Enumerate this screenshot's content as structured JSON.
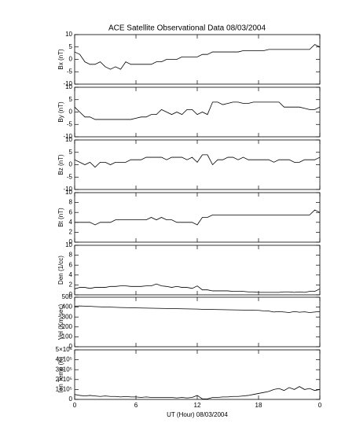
{
  "chart_data": [
    {
      "type": "line",
      "title": "ACE Satellite Observational Data   08/03/2004",
      "ylabel": "Bx (nT)",
      "x": [
        0,
        0.5,
        1,
        1.5,
        2,
        2.5,
        3,
        3.5,
        4,
        4.5,
        5,
        5.5,
        6,
        6.5,
        7,
        7.5,
        8,
        8.5,
        9,
        9.5,
        10,
        10.5,
        11,
        11.5,
        12,
        12.5,
        13,
        13.5,
        14,
        14.5,
        15,
        15.5,
        16,
        16.5,
        17,
        17.5,
        18,
        18.5,
        19,
        19.5,
        20,
        20.5,
        21,
        21.5,
        22,
        22.5,
        23,
        23.5,
        24
      ],
      "values": [
        3,
        2,
        -1,
        -2,
        -2,
        -1,
        -3,
        -4,
        -3,
        -4,
        -1,
        -2,
        -2,
        -2,
        -2,
        -2,
        -1,
        -1,
        0,
        0,
        0,
        1,
        1,
        1,
        1,
        2,
        2,
        3,
        3,
        3,
        3,
        3,
        3,
        3.5,
        3.5,
        3.5,
        3.5,
        3.5,
        4,
        4,
        4,
        4,
        4,
        4,
        4,
        4,
        4,
        6,
        5
      ],
      "xlim": [
        0,
        24
      ],
      "xticks": [
        0,
        6,
        12,
        18,
        {
          "value": 24,
          "label": "0"
        }
      ],
      "ylim": [
        -10,
        10
      ],
      "yticks": [
        -10,
        -5,
        0,
        5,
        10
      ]
    },
    {
      "type": "line",
      "ylabel": "By (nT)",
      "x": [
        0,
        0.5,
        1,
        1.5,
        2,
        2.5,
        3,
        3.5,
        4,
        4.5,
        5,
        5.5,
        6,
        6.5,
        7,
        7.5,
        8,
        8.5,
        9,
        9.5,
        10,
        10.5,
        11,
        11.5,
        12,
        12.5,
        13,
        13.5,
        14,
        14.5,
        15,
        15.5,
        16,
        16.5,
        17,
        17.5,
        18,
        18.5,
        19,
        19.5,
        20,
        20.5,
        21,
        21.5,
        22,
        22.5,
        23,
        23.5,
        24
      ],
      "values": [
        2,
        0,
        -2,
        -2,
        -3,
        -3,
        -3,
        -3,
        -3,
        -3,
        -3,
        -3,
        -2.5,
        -2,
        -2,
        -1,
        -1,
        1,
        0,
        -1,
        0,
        -1,
        1,
        1,
        -1,
        0,
        -1,
        4,
        4,
        3,
        3.5,
        4,
        4,
        3.5,
        3.5,
        4,
        4,
        4,
        4,
        4,
        4,
        2,
        2,
        2,
        2,
        1.5,
        1,
        1,
        2
      ],
      "xlim": [
        0,
        24
      ],
      "xticks": [
        0,
        6,
        12,
        18,
        {
          "value": 24,
          "label": "0"
        }
      ],
      "ylim": [
        -10,
        10
      ],
      "yticks": [
        -10,
        -5,
        0,
        5,
        10
      ]
    },
    {
      "type": "line",
      "ylabel": "Bz (nT)",
      "x": [
        0,
        0.5,
        1,
        1.5,
        2,
        2.5,
        3,
        3.5,
        4,
        4.5,
        5,
        5.5,
        6,
        6.5,
        7,
        7.5,
        8,
        8.5,
        9,
        9.5,
        10,
        10.5,
        11,
        11.5,
        12,
        12.5,
        13,
        13.5,
        14,
        14.5,
        15,
        15.5,
        16,
        16.5,
        17,
        17.5,
        18,
        18.5,
        19,
        19.5,
        20,
        20.5,
        21,
        21.5,
        22,
        22.5,
        23,
        23.5,
        24
      ],
      "values": [
        2,
        1,
        0,
        1,
        -1,
        1,
        1,
        0,
        1,
        1,
        1,
        2,
        2,
        2,
        3,
        3,
        3,
        3,
        2,
        3,
        3,
        3,
        2,
        3,
        1,
        4,
        4,
        0,
        2,
        2,
        3,
        3,
        2,
        3,
        2,
        2,
        2,
        2,
        2,
        1,
        2,
        2,
        2,
        1,
        1,
        2,
        2,
        2,
        3
      ],
      "xlim": [
        0,
        24
      ],
      "xticks": [
        0,
        6,
        12,
        18,
        {
          "value": 24,
          "label": "0"
        }
      ],
      "ylim": [
        -10,
        10
      ],
      "yticks": [
        -10,
        -5,
        0,
        5,
        10
      ]
    },
    {
      "type": "line",
      "ylabel": "Bt (nT)",
      "x": [
        0,
        0.5,
        1,
        1.5,
        2,
        2.5,
        3,
        3.5,
        4,
        4.5,
        5,
        5.5,
        6,
        6.5,
        7,
        7.5,
        8,
        8.5,
        9,
        9.5,
        10,
        10.5,
        11,
        11.5,
        12,
        12.5,
        13,
        13.5,
        14,
        14.5,
        15,
        15.5,
        16,
        16.5,
        17,
        17.5,
        18,
        18.5,
        19,
        19.5,
        20,
        20.5,
        21,
        21.5,
        22,
        22.5,
        23,
        23.5,
        24
      ],
      "values": [
        4,
        4,
        4,
        4,
        3.5,
        4,
        4,
        4,
        4.5,
        4.5,
        4.5,
        4.5,
        4.5,
        4.5,
        4.5,
        5,
        4.5,
        5,
        4.5,
        4.5,
        4,
        4,
        4,
        4,
        3.5,
        5,
        5,
        5.5,
        5.5,
        5.5,
        5.5,
        5.5,
        5.5,
        5.5,
        5.5,
        5.5,
        5.5,
        5.5,
        5.5,
        5.5,
        5.5,
        5.5,
        5.5,
        5.5,
        5.5,
        5.5,
        5.5,
        6.5,
        6
      ],
      "xlim": [
        0,
        24
      ],
      "xticks": [
        0,
        6,
        12,
        18,
        {
          "value": 24,
          "label": "0"
        }
      ],
      "ylim": [
        0,
        10
      ],
      "yticks": [
        0,
        2,
        4,
        6,
        8,
        10
      ]
    },
    {
      "type": "line",
      "ylabel": "Den (1/cc)",
      "x": [
        0,
        0.5,
        1,
        1.5,
        2,
        2.5,
        3,
        3.5,
        4,
        4.5,
        5,
        5.5,
        6,
        6.5,
        7,
        7.5,
        8,
        8.5,
        9,
        9.5,
        10,
        10.5,
        11,
        11.5,
        12,
        12.5,
        13,
        13.5,
        14,
        14.5,
        15,
        15.5,
        16,
        16.5,
        17,
        17.5,
        18,
        18.5,
        19,
        19.5,
        20,
        20.5,
        21,
        21.5,
        22,
        22.5,
        23,
        23.5,
        24
      ],
      "values": [
        1.2,
        1.5,
        1.5,
        1.3,
        1.5,
        1.5,
        1.5,
        1.7,
        1.7,
        1.8,
        1.8,
        1.7,
        1.7,
        1.7,
        1.8,
        1.8,
        2.2,
        1.8,
        1.7,
        1.5,
        1.7,
        1.5,
        1.5,
        1.3,
        1.8,
        1,
        1,
        0.8,
        0.8,
        0.8,
        0.8,
        0.7,
        0.7,
        0.7,
        0.6,
        0.6,
        0.5,
        0.5,
        0.5,
        0.5,
        0.5,
        0.6,
        0.6,
        0.5,
        0.6,
        0.5,
        0.7,
        0.7,
        1.2
      ],
      "xlim": [
        0,
        24
      ],
      "xticks": [
        0,
        6,
        12,
        18,
        {
          "value": 24,
          "label": "0"
        }
      ],
      "ylim": [
        0,
        10
      ],
      "yticks": [
        0,
        2,
        4,
        6,
        8,
        10
      ]
    },
    {
      "type": "line",
      "ylabel": "Vel (Km/sec)",
      "x": [
        0,
        0.5,
        1,
        1.5,
        2,
        2.5,
        3,
        3.5,
        4,
        4.5,
        5,
        5.5,
        6,
        6.5,
        7,
        7.5,
        8,
        8.5,
        9,
        9.5,
        10,
        10.5,
        11,
        11.5,
        12,
        12.5,
        13,
        13.5,
        14,
        14.5,
        15,
        15.5,
        16,
        16.5,
        17,
        17.5,
        18,
        18.5,
        19,
        19.5,
        20,
        20.5,
        21,
        21.5,
        22,
        22.5,
        23,
        23.5,
        24
      ],
      "values": [
        410,
        412,
        410,
        408,
        405,
        403,
        400,
        400,
        398,
        396,
        395,
        394,
        392,
        391,
        390,
        389,
        388,
        387,
        386,
        385,
        384,
        383,
        382,
        381,
        380,
        378,
        377,
        376,
        375,
        374,
        373,
        372,
        371,
        370,
        370,
        368,
        367,
        362,
        360,
        350,
        355,
        350,
        345,
        355,
        348,
        352,
        345,
        350,
        355
      ],
      "xlim": [
        0,
        24
      ],
      "xticks": [
        0,
        6,
        12,
        18,
        {
          "value": 24,
          "label": "0"
        }
      ],
      "ylim": [
        0,
        500
      ],
      "yticks": [
        0,
        100,
        200,
        300,
        400,
        500
      ]
    },
    {
      "type": "line",
      "ylabel": "Ion Temp (K)",
      "xlabel": "UT (Hour)   08/03/2004",
      "x": [
        0,
        0.5,
        1,
        1.5,
        2,
        2.5,
        3,
        3.5,
        4,
        4.5,
        5,
        5.5,
        6,
        6.5,
        7,
        7.5,
        8,
        8.5,
        9,
        9.5,
        10,
        10.5,
        11,
        11.5,
        12,
        12.5,
        13,
        13.5,
        14,
        14.5,
        15,
        15.5,
        16,
        16.5,
        17,
        17.5,
        18,
        18.5,
        19,
        19.5,
        20,
        20.5,
        21,
        21.5,
        22,
        22.5,
        23,
        23.5,
        24
      ],
      "values": [
        50000,
        40000,
        35000,
        40000,
        35000,
        30000,
        35000,
        30000,
        30000,
        25000,
        30000,
        25000,
        25000,
        20000,
        25000,
        20000,
        20000,
        20000,
        20000,
        20000,
        15000,
        20000,
        15000,
        20000,
        40000,
        5000,
        5000,
        20000,
        20000,
        25000,
        25000,
        30000,
        30000,
        35000,
        40000,
        50000,
        60000,
        70000,
        80000,
        100000,
        110000,
        90000,
        120000,
        100000,
        130000,
        100000,
        110000,
        90000,
        100000
      ],
      "xlim": [
        0,
        24
      ],
      "xticks": [
        0,
        6,
        12,
        18,
        {
          "value": 24,
          "label": "0"
        }
      ],
      "ylim": [
        0,
        500000
      ],
      "yticks": [
        0,
        {
          "value": 100000,
          "label": "1×10⁵"
        },
        {
          "value": 200000,
          "label": "2×10⁵"
        },
        {
          "value": 300000,
          "label": "3×10⁵"
        },
        {
          "value": 400000,
          "label": "4×10⁵"
        },
        {
          "value": 500000,
          "label": "5×10⁵"
        }
      ]
    }
  ]
}
